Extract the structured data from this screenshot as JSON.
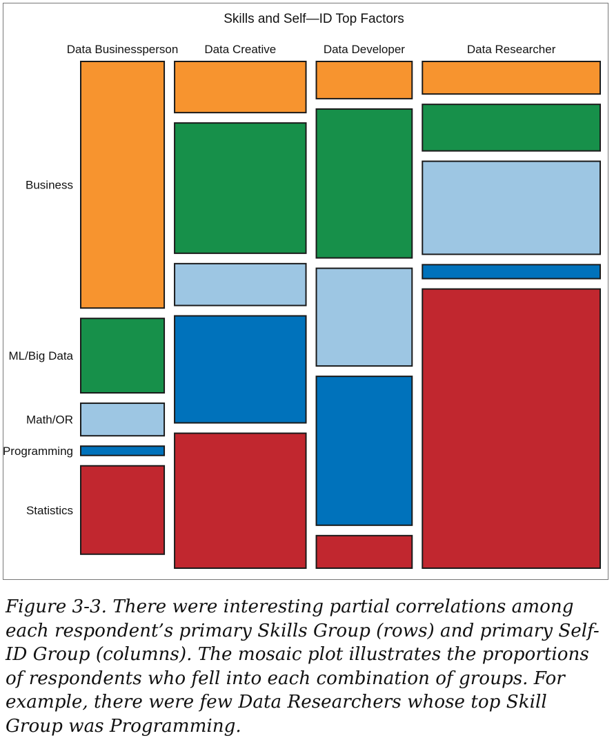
{
  "chart_data": {
    "type": "mosaic",
    "title": "Skills and Self—ID Top Factors",
    "columns": [
      "Data Businessperson",
      "Data Creative",
      "Data Developer",
      "Data Researcher"
    ],
    "column_widths": [
      0.171,
      0.269,
      0.196,
      0.364
    ],
    "rows": [
      "Business",
      "ML/Big Data",
      "Math/OR",
      "Programming",
      "Statistics"
    ],
    "row_label_order": "top-to-bottom",
    "colors": {
      "Business": "#f7942f",
      "ML/Big Data": "#17904a",
      "Math/OR": "#9dc6e3",
      "Programming": "#0072bb",
      "Statistics": "#c1272f"
    },
    "proportions": {
      "Data Businessperson": [
        0.53,
        0.16,
        0.07,
        0.02,
        0.19
      ],
      "Data Creative": [
        0.11,
        0.28,
        0.09,
        0.23,
        0.29
      ],
      "Data Developer": [
        0.08,
        0.32,
        0.21,
        0.32,
        0.07
      ],
      "Data Researcher": [
        0.07,
        0.1,
        0.2,
        0.03,
        0.6
      ]
    }
  },
  "caption": "Figure 3-3. There were interesting partial correlations among each re­spondent’s primary Skills Group (rows) and primary Self-ID Group (columns). The mosaic plot illustrates the proportions of respondents who fell into each combination of groups. For example, there were few Data Researchers whose top Skill Group was Programming."
}
